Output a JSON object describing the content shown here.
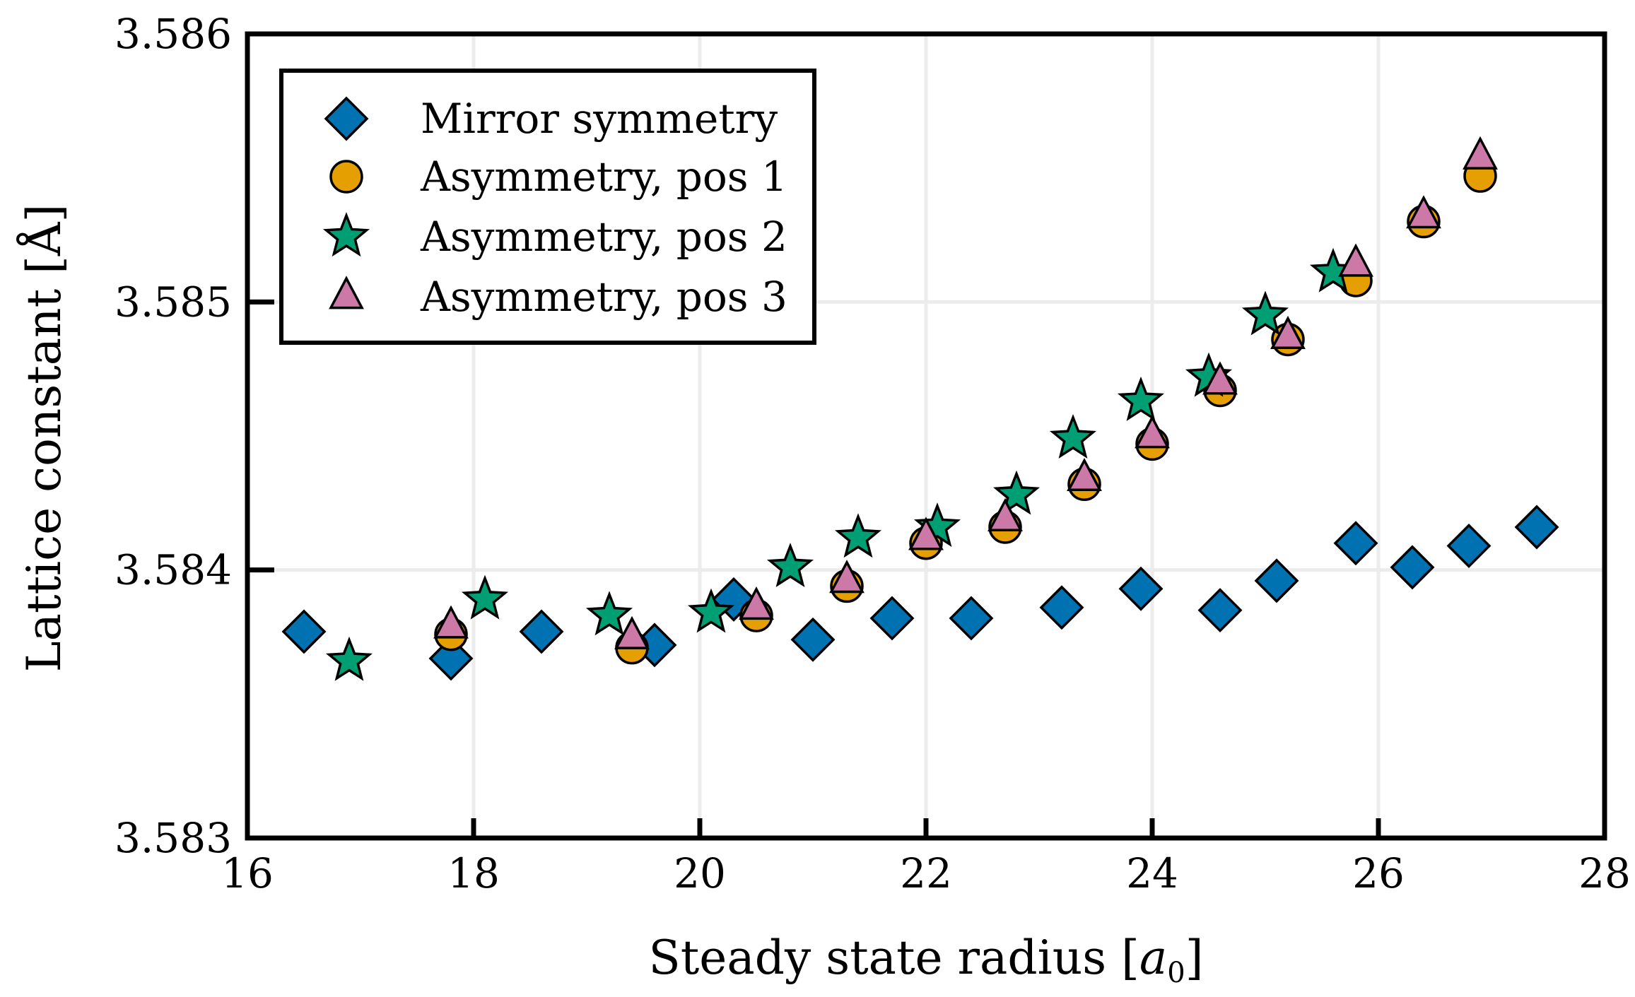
{
  "chart_data": {
    "type": "scatter",
    "title": "",
    "xlabel": "Steady state radius [",
    "xlabel_unit": "a",
    "xlabel_sub": "0",
    "xlabel_end": "]",
    "ylabel": "Lattice constant [Å]",
    "xlim": [
      16,
      28
    ],
    "ylim": [
      3.583,
      3.586
    ],
    "xticks": [
      16,
      18,
      20,
      22,
      24,
      26,
      28
    ],
    "xtick_labels": [
      "16",
      "18",
      "20",
      "22",
      "24",
      "26",
      "28"
    ],
    "yticks": [
      3.583,
      3.584,
      3.585,
      3.586
    ],
    "ytick_labels": [
      "3.583",
      "3.584",
      "3.585",
      "3.586"
    ],
    "grid": true,
    "legend_position": "top-left",
    "series": [
      {
        "name": "Mirror symmetry",
        "marker": "diamond",
        "color": "#0072B2",
        "x": [
          16.5,
          17.8,
          18.6,
          19.6,
          20.3,
          21.0,
          21.7,
          22.4,
          23.2,
          23.9,
          24.6,
          25.1,
          25.8,
          26.3,
          26.8,
          27.4
        ],
        "y": [
          3.58377,
          3.58367,
          3.58377,
          3.58372,
          3.58389,
          3.58374,
          3.58382,
          3.58382,
          3.58386,
          3.58393,
          3.58385,
          3.58396,
          3.5841,
          3.58401,
          3.58409,
          3.58416
        ]
      },
      {
        "name": "Asymmetry, pos 1",
        "marker": "circle",
        "color": "#E69F00",
        "x": [
          17.8,
          19.4,
          20.5,
          21.3,
          22.0,
          22.7,
          23.4,
          24.0,
          24.6,
          25.2,
          25.8,
          26.4,
          26.9
        ],
        "y": [
          3.58376,
          3.58371,
          3.58383,
          3.58394,
          3.5841,
          3.58416,
          3.58432,
          3.58447,
          3.58467,
          3.58486,
          3.58508,
          3.5853,
          3.58547
        ]
      },
      {
        "name": "Asymmetry, pos 2",
        "marker": "star",
        "color": "#009E73",
        "x": [
          16.9,
          18.1,
          19.2,
          20.1,
          20.8,
          21.4,
          22.1,
          22.8,
          23.3,
          23.9,
          24.5,
          25.0,
          25.6
        ],
        "y": [
          3.58366,
          3.58389,
          3.58383,
          3.58384,
          3.58401,
          3.58412,
          3.58416,
          3.58428,
          3.58449,
          3.58463,
          3.58472,
          3.58495,
          3.58511
        ]
      },
      {
        "name": "Asymmetry, pos 3",
        "marker": "triangle",
        "color": "#CC79A7",
        "x": [
          17.8,
          19.4,
          20.5,
          21.3,
          22.0,
          22.7,
          23.4,
          24.0,
          24.6,
          25.2,
          25.8,
          26.4,
          26.9
        ],
        "y": [
          3.58379,
          3.58375,
          3.58386,
          3.58396,
          3.58412,
          3.58419,
          3.58434,
          3.5845,
          3.5847,
          3.58487,
          3.58514,
          3.58532,
          3.58554
        ]
      }
    ]
  }
}
